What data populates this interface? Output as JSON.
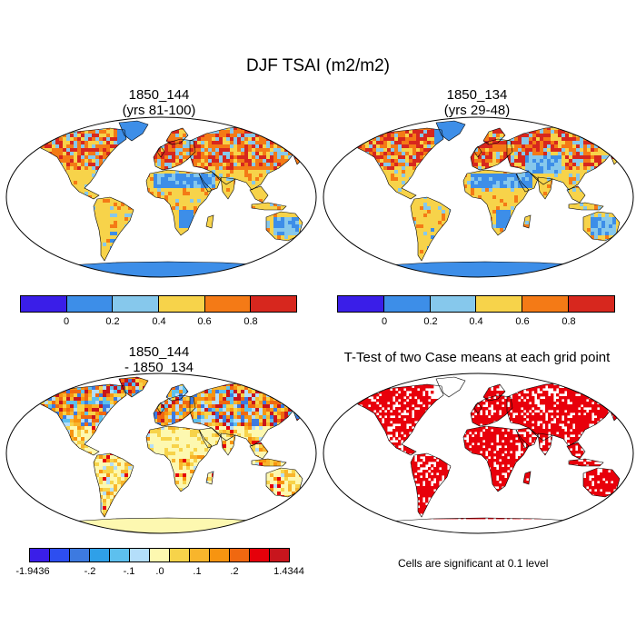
{
  "title": "DJF TSAI (m2/m2)",
  "panels": [
    {
      "title_line1": "1850_144",
      "title_line2": "(yrs 81-100)"
    },
    {
      "title_line1": "1850_134",
      "title_line2": "(yrs 29-48)"
    },
    {
      "title_line1": "1850_144",
      "title_line2": "- 1850_134"
    },
    {
      "title_line1": "T-Test of two Case means at each grid point",
      "title_line2": ""
    }
  ],
  "colorbar_top": {
    "colors": [
      "#3a1ee8",
      "#3d8ee8",
      "#86c8ec",
      "#f7d34a",
      "#f47a16",
      "#d7271e"
    ],
    "labels": [
      "0",
      "0.2",
      "0.4",
      "0.6",
      "0.8"
    ]
  },
  "colorbar_diff": {
    "colors": [
      "#3a1ee8",
      "#2d4ef0",
      "#3d7ae0",
      "#2fa0e8",
      "#5dc0ee",
      "#b4defa",
      "#fdf8b0",
      "#f7d34a",
      "#f8b52c",
      "#f79410",
      "#f06810",
      "#e5000a",
      "#c8151d"
    ],
    "labels": [
      "-1.9436",
      "-.2",
      "-.1",
      ".0",
      ".1",
      ".2",
      "1.4344"
    ]
  },
  "significance_note": "Cells are significant at 0.1 level",
  "significance_color": "#e8000b"
}
